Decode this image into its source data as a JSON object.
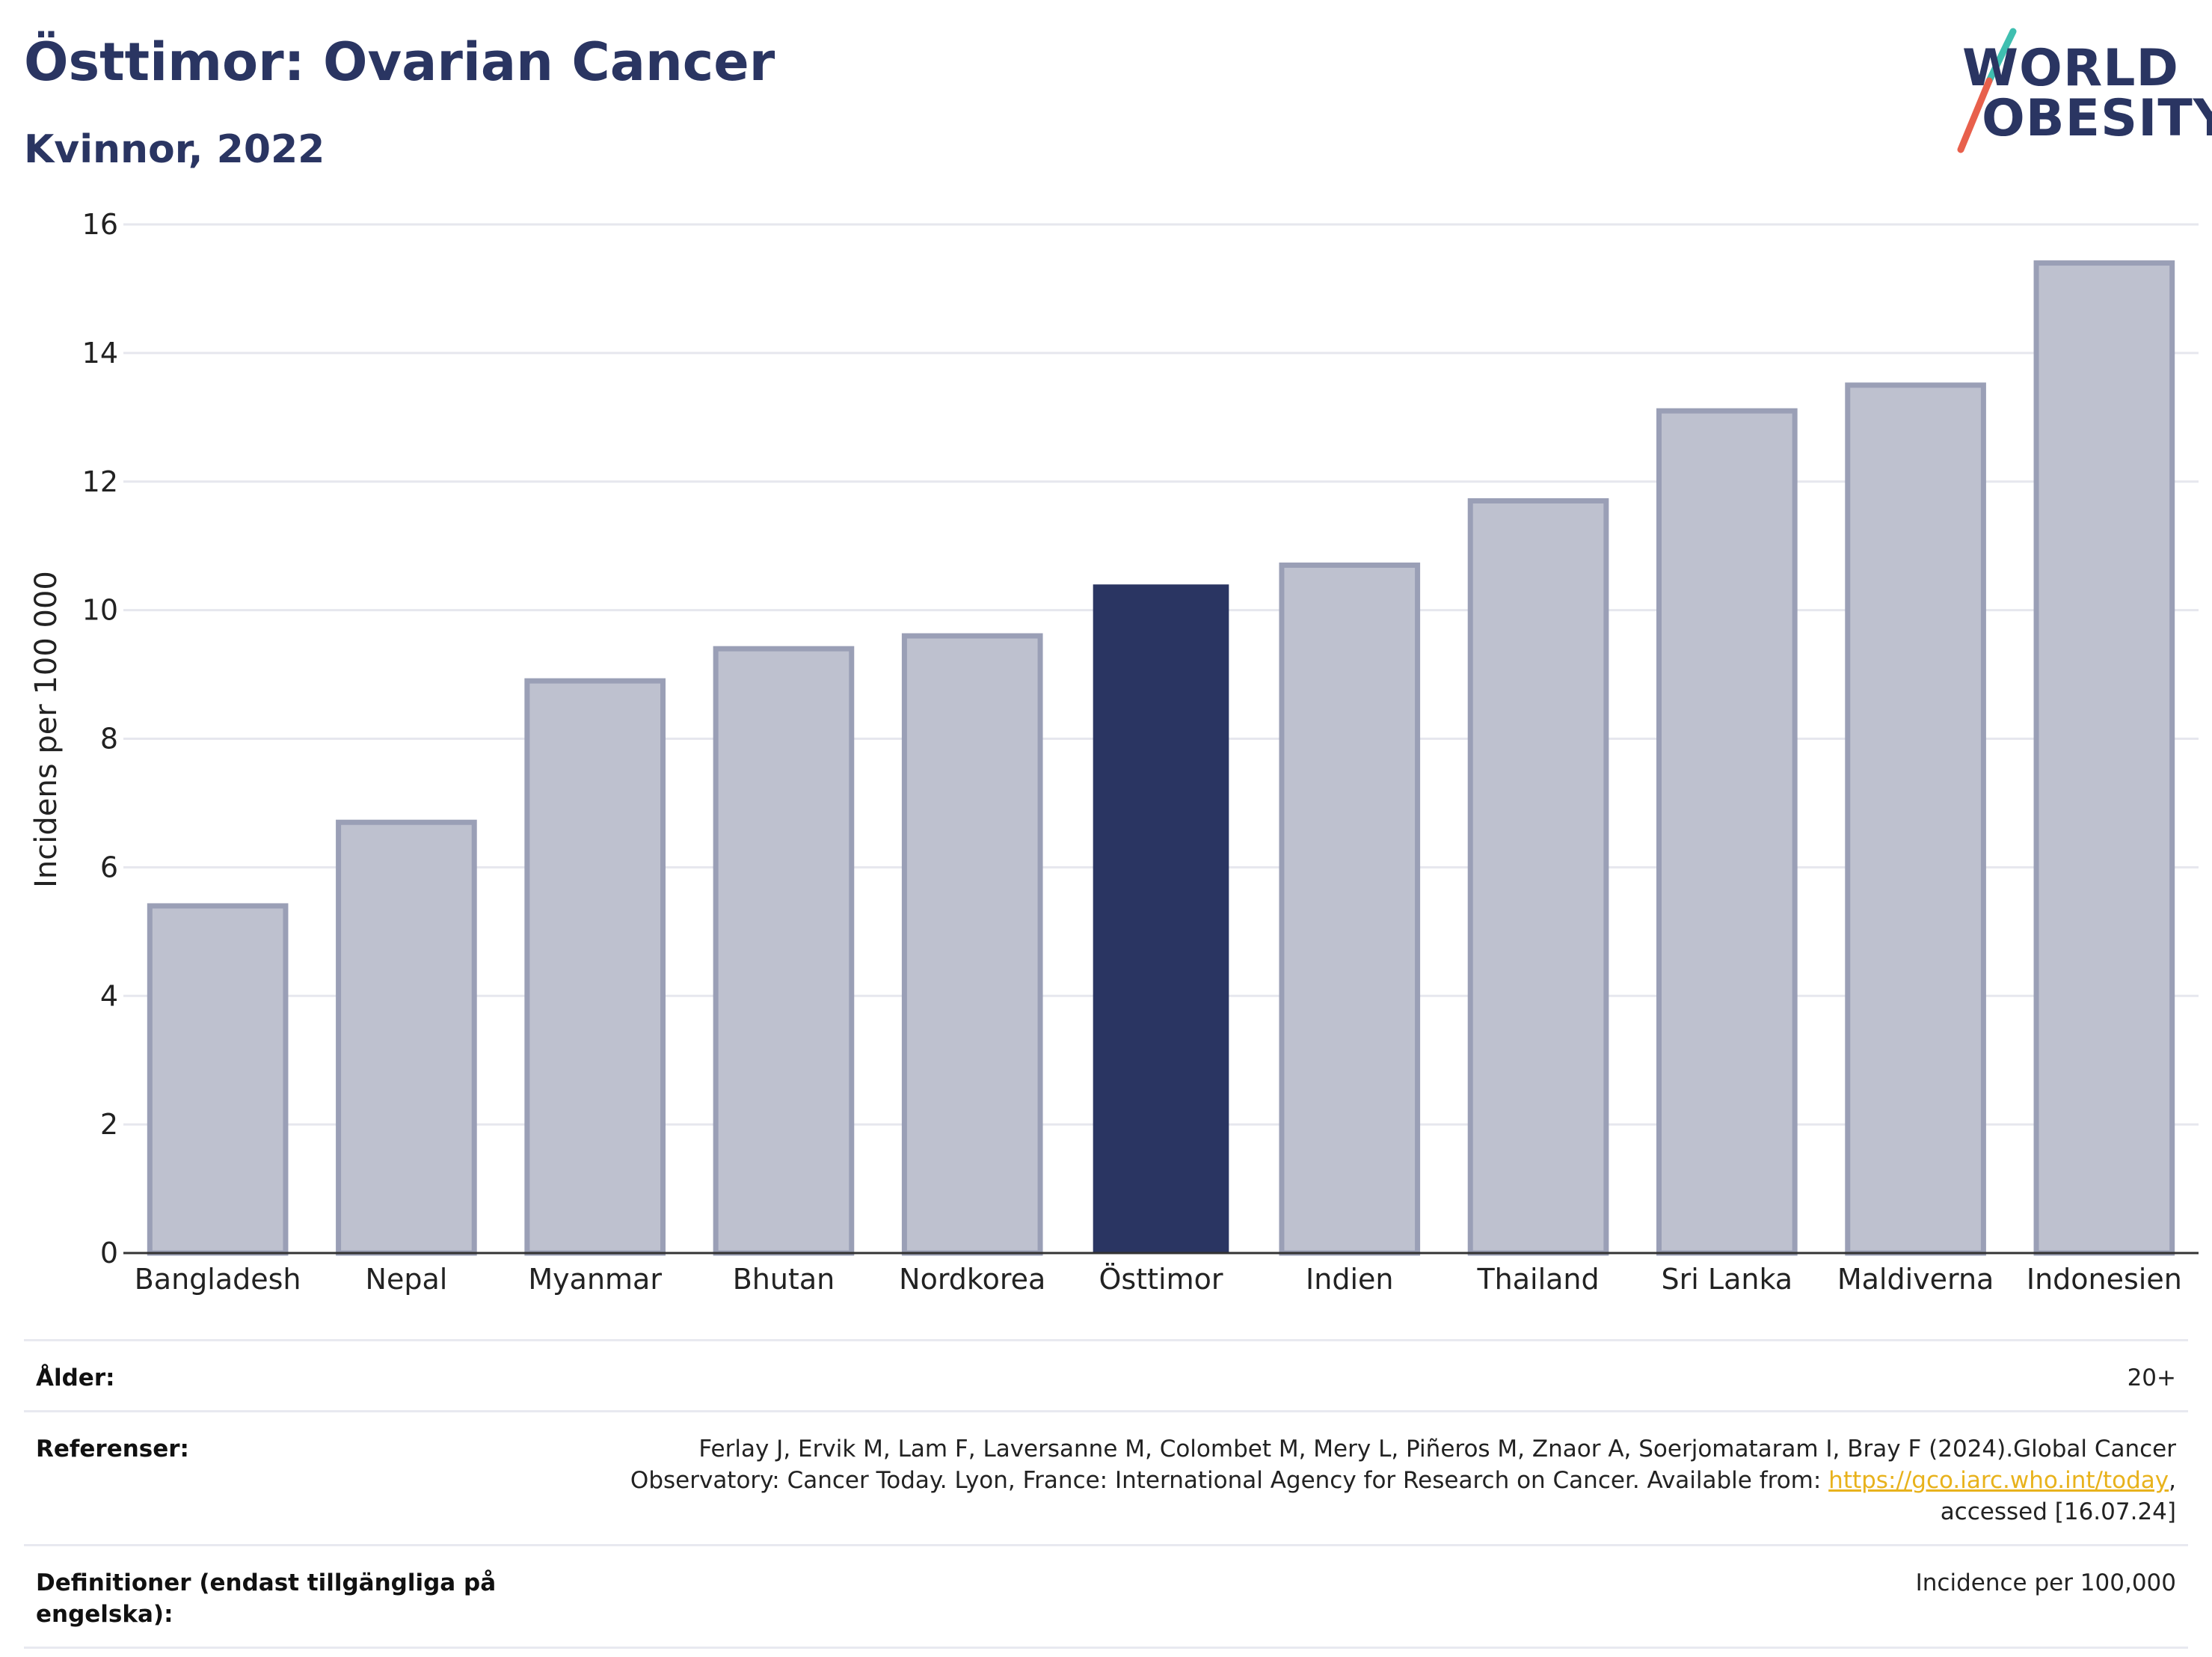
{
  "header": {
    "title": "Östtimor: Ovarian Cancer",
    "subtitle": "Kvinnor, 2022",
    "logo_line1": "WORLD",
    "logo_line2": "OBESITY"
  },
  "colors": {
    "highlight": "#2a3562",
    "bar_fill": "#bec1cf",
    "bar_stroke": "#9a9fb6",
    "grid": "#e6e7ee",
    "logo_slash_top": "#3fbfb0",
    "logo_slash_bottom": "#e8604c"
  },
  "chart_data": {
    "type": "bar",
    "title": "Östtimor: Ovarian Cancer",
    "subtitle": "Kvinnor, 2022",
    "xlabel": "",
    "ylabel": "Incidens per 100 000",
    "ylim": [
      0,
      16
    ],
    "yticks": [
      0,
      2,
      4,
      6,
      8,
      10,
      12,
      14,
      16
    ],
    "grid": true,
    "highlight_category": "Östtimor",
    "categories": [
      "Bangladesh",
      "Nepal",
      "Myanmar",
      "Bhutan",
      "Nordkorea",
      "Östtimor",
      "Indien",
      "Thailand",
      "Sri Lanka",
      "Maldiverna",
      "Indonesien"
    ],
    "values": [
      5.4,
      6.7,
      8.9,
      9.4,
      9.6,
      10.4,
      10.7,
      11.7,
      13.1,
      13.5,
      15.4
    ]
  },
  "info": {
    "age_label": "Ålder:",
    "age_value": "20+",
    "ref_label": "Referenser:",
    "ref_text_1": "Ferlay J, Ervik M, Lam F, Laversanne M, Colombet M, Mery L, Piñeros M, Znaor A, Soerjomataram I, Bray F (2024).Global Cancer",
    "ref_text_2": "Observatory: Cancer Today. Lyon, France: International Agency for Research on Cancer. Available from: ",
    "ref_link": "https://gco.iarc.who.int/today",
    "ref_text_3": ",",
    "ref_text_4": "accessed [16.07.24]",
    "def_label": "Definitioner (endast tillgängliga på engelska):",
    "def_value": "Incidence per 100,000"
  }
}
